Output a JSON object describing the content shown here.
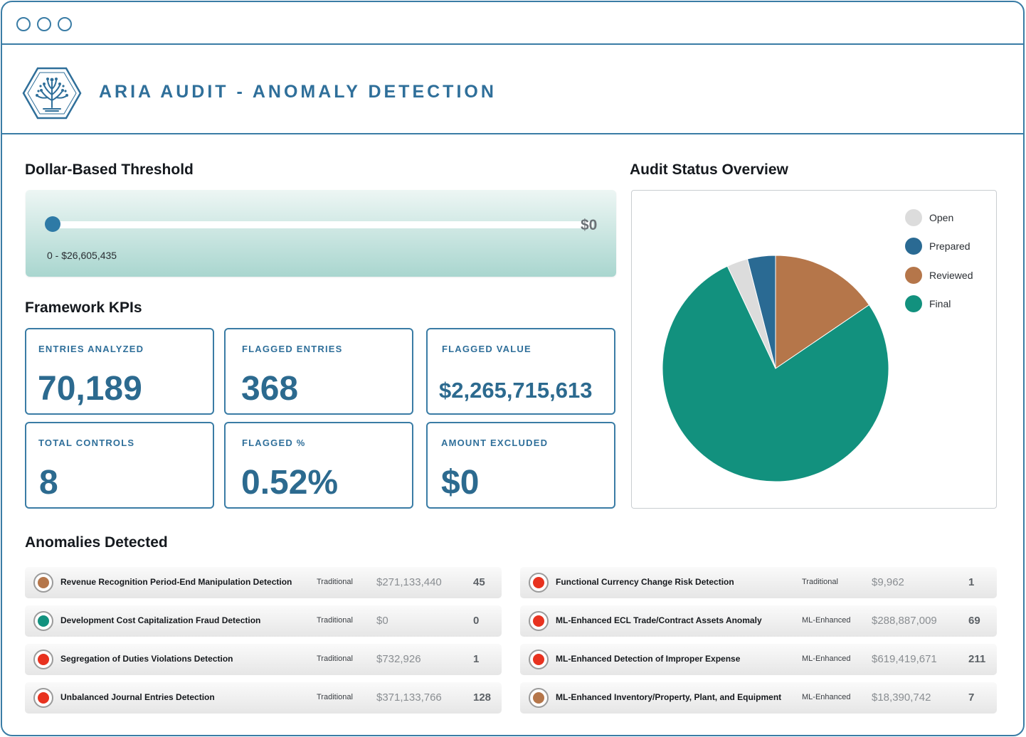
{
  "app": {
    "title": "ARIA AUDIT - ANOMALY DETECTION"
  },
  "colors": {
    "brand": "#2f6f9a",
    "border": "#3a7ca5",
    "open": "#dcdcdc",
    "prepared": "#2a6a93",
    "reviewed": "#b5764a",
    "final": "#12917e",
    "alert": "#e8321f"
  },
  "threshold": {
    "title": "Dollar-Based Threshold",
    "value_label": "$0",
    "range_label": "0 - $26,605,435",
    "slider_fraction": 0
  },
  "kpis": {
    "title": "Framework KPIs",
    "entries_analyzed": {
      "label": "ENTRIES ANALYZED",
      "value": "70,189"
    },
    "flagged_entries": {
      "label": "FLAGGED ENTRIES",
      "value": "368"
    },
    "flagged_value": {
      "label": "FLAGGED VALUE",
      "value": "$2,265,715,613"
    },
    "total_controls": {
      "label": "TOTAL CONTROLS",
      "value": "8"
    },
    "flagged_pct": {
      "label": "FLAGGED %",
      "value": "0.52%"
    },
    "amount_excluded": {
      "label": "AMOUNT EXCLUDED",
      "value": "$0"
    }
  },
  "status_overview": {
    "title": "Audit Status Overview",
    "legend": [
      {
        "label": "Open",
        "color": "#dcdcdc"
      },
      {
        "label": "Prepared",
        "color": "#2a6a93"
      },
      {
        "label": "Reviewed",
        "color": "#b5764a"
      },
      {
        "label": "Final",
        "color": "#12917e"
      }
    ]
  },
  "chart_data": {
    "type": "pie",
    "title": "",
    "categories": [
      "Reviewed",
      "Final",
      "Open",
      "Prepared"
    ],
    "values": [
      15.5,
      77.5,
      3.0,
      4.0
    ],
    "colors": [
      "#b5764a",
      "#12917e",
      "#dcdcdc",
      "#2a6a93"
    ],
    "start_angle": "12 o'clock, clockwise",
    "legend_position": "top-right"
  },
  "anomalies": {
    "title": "Anomalies Detected",
    "items": [
      {
        "name": "Revenue Recognition Period-End Manipulation Detection",
        "method": "Traditional",
        "amount": "$271,133,440",
        "count": "45",
        "status_color": "#b5764a"
      },
      {
        "name": "Development Cost Capitalization Fraud Detection",
        "method": "Traditional",
        "amount": "$0",
        "count": "0",
        "status_color": "#12917e"
      },
      {
        "name": "Segregation of Duties Violations Detection",
        "method": "Traditional",
        "amount": "$732,926",
        "count": "1",
        "status_color": "#e8321f"
      },
      {
        "name": "Unbalanced Journal Entries Detection",
        "method": "Traditional",
        "amount": "$371,133,766",
        "count": "128",
        "status_color": "#e8321f"
      },
      {
        "name": "Functional Currency Change Risk Detection",
        "method": "Traditional",
        "amount": "$9,962",
        "count": "1",
        "status_color": "#e8321f"
      },
      {
        "name": "ML-Enhanced ECL Trade/Contract Assets Anomaly",
        "method": "ML-Enhanced",
        "amount": "$288,887,009",
        "count": "69",
        "status_color": "#e8321f"
      },
      {
        "name": "ML-Enhanced Detection of Improper Expense",
        "method": "ML-Enhanced",
        "amount": "$619,419,671",
        "count": "211",
        "status_color": "#e8321f"
      },
      {
        "name": "ML-Enhanced Inventory/Property, Plant, and Equipment",
        "method": "ML-Enhanced",
        "amount": "$18,390,742",
        "count": "7",
        "status_color": "#b5764a"
      }
    ]
  }
}
